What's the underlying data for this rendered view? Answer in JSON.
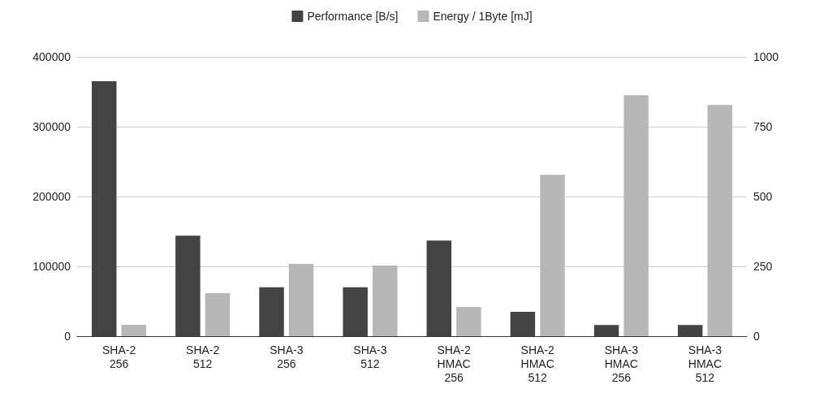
{
  "chart_data": {
    "type": "bar",
    "categories": [
      "SHA-2\n256",
      "SHA-2\n512",
      "SHA-3\n256",
      "SHA-3\n512",
      "SHA-2\nHMAC\n256",
      "SHA-2\nHMAC\n512",
      "SHA-3\nHMAC\n256",
      "SHA-3\nHMAC\n512"
    ],
    "series": [
      {
        "name": "Performance [B/s]",
        "color": "#434343",
        "values": [
          365000,
          144000,
          70000,
          70000,
          137000,
          35000,
          16000,
          16000
        ]
      },
      {
        "name": "Energy / 1Byte [mJ]",
        "color": "#b7b7b7",
        "axis": "y2",
        "values": [
          41,
          154,
          259,
          253,
          105,
          578,
          863,
          828
        ]
      }
    ],
    "ylim": [
      0,
      400000
    ],
    "yticks": [
      0,
      100000,
      200000,
      300000,
      400000
    ],
    "y2lim": [
      0,
      1000
    ],
    "y2ticks": [
      0,
      250,
      500,
      750,
      1000
    ],
    "grid": "y",
    "legend": "top"
  }
}
